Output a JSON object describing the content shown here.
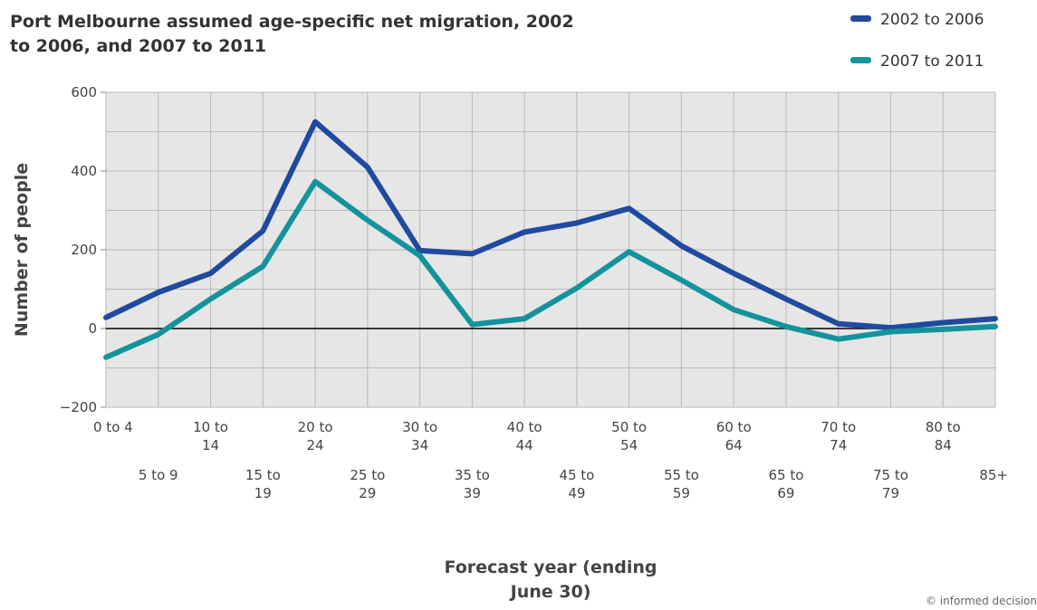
{
  "chart_data": {
    "type": "line",
    "title_lines": [
      "Port Melbourne assumed age-specific net migration, 2002",
      "to 2006, and 2007 to 2011"
    ],
    "xlabel_lines": [
      "Forecast year (ending",
      "June 30)"
    ],
    "ylabel": "Number of people",
    "categories": [
      "0 to 4",
      "5 to 9",
      "10 to 14",
      "15 to 19",
      "20 to 24",
      "25 to 29",
      "30 to 34",
      "35 to 39",
      "40 to 44",
      "45 to 49",
      "50 to 54",
      "55 to 59",
      "60 to 64",
      "65 to 69",
      "70 to 74",
      "75 to 79",
      "80 to 84",
      "85+"
    ],
    "category_label_lines": [
      [
        "0 to 4"
      ],
      [
        "5 to 9"
      ],
      [
        "10 to",
        "14"
      ],
      [
        "15 to",
        "19"
      ],
      [
        "20 to",
        "24"
      ],
      [
        "25 to",
        "29"
      ],
      [
        "30 to",
        "34"
      ],
      [
        "35 to",
        "39"
      ],
      [
        "40 to",
        "44"
      ],
      [
        "45 to",
        "49"
      ],
      [
        "50 to",
        "54"
      ],
      [
        "55 to",
        "59"
      ],
      [
        "60 to",
        "64"
      ],
      [
        "65 to",
        "69"
      ],
      [
        "70 to",
        "74"
      ],
      [
        "75 to",
        "79"
      ],
      [
        "80 to",
        "84"
      ],
      [
        "85+"
      ]
    ],
    "series": [
      {
        "name": "2002 to 2006",
        "color": "#1f4a9e",
        "values": [
          28,
          92,
          140,
          248,
          525,
          410,
          198,
          190,
          245,
          268,
          305,
          210,
          140,
          75,
          12,
          2,
          15,
          25
        ]
      },
      {
        "name": "2007 to 2011",
        "color": "#14939c",
        "values": [
          -73,
          -15,
          75,
          158,
          373,
          275,
          185,
          10,
          25,
          103,
          195,
          123,
          48,
          5,
          -27,
          -8,
          -2,
          5
        ]
      }
    ],
    "ylim": [
      -200,
      600
    ],
    "yticks": [
      -200,
      0,
      200,
      400,
      600
    ],
    "grid": true,
    "legend_position": "top-right",
    "background_color": "#e6e6e6",
    "grid_color": "#b8b8b8",
    "zero_line_color": "#000000"
  },
  "footer": {
    "credit": "© informed decision"
  }
}
